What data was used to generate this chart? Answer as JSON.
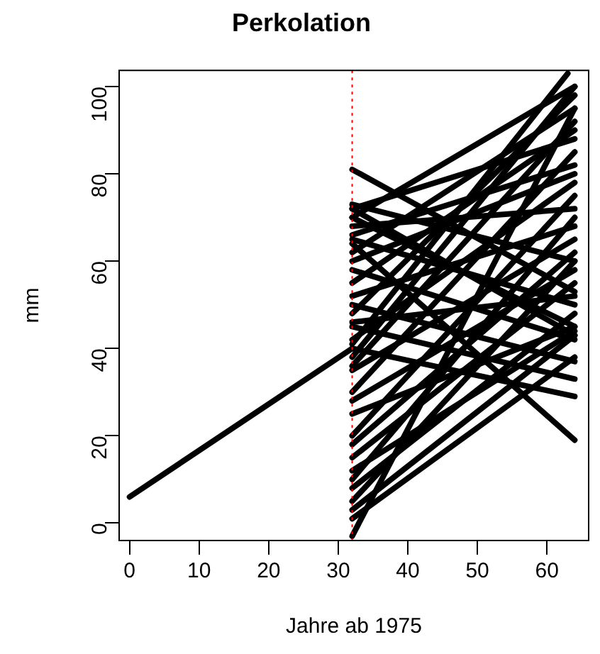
{
  "chart_data": {
    "type": "line",
    "title": "Perkolation",
    "xlabel": "Jahre ab 1975",
    "ylabel": "mm",
    "xlim": [
      -1.5,
      66
    ],
    "ylim": [
      -4,
      103.7
    ],
    "xticks": [
      0,
      10,
      20,
      30,
      40,
      50,
      60
    ],
    "yticks": [
      0,
      20,
      40,
      60,
      80,
      100
    ],
    "grid": false,
    "legend": false,
    "marker": "none",
    "line_style": "solid",
    "ref_lines": [
      {
        "axis": "x",
        "value": 32,
        "color": "#ff0000",
        "line_style": "dotted"
      }
    ],
    "series": [
      {
        "color": "#000000",
        "x": [
          0,
          32
        ],
        "values": [
          6,
          40
        ]
      },
      {
        "color": "#000000",
        "x": [
          32,
          64
        ],
        "values": [
          81,
          53
        ]
      },
      {
        "color": "#000000",
        "x": [
          32,
          63
        ],
        "values": [
          41,
          103
        ]
      },
      {
        "color": "#000000",
        "x": [
          32,
          64
        ],
        "values": [
          38,
          100
        ]
      },
      {
        "color": "#000000",
        "x": [
          32,
          64
        ],
        "values": [
          -3,
          95
        ]
      },
      {
        "color": "#000000",
        "x": [
          32,
          64
        ],
        "values": [
          1,
          38
        ]
      },
      {
        "color": "#000000",
        "x": [
          32,
          64
        ],
        "values": [
          5,
          60
        ]
      },
      {
        "color": "#000000",
        "x": [
          32,
          64
        ],
        "values": [
          10,
          70
        ]
      },
      {
        "color": "#000000",
        "x": [
          32,
          64
        ],
        "values": [
          64,
          19
        ]
      },
      {
        "color": "#000000",
        "x": [
          32,
          64
        ],
        "values": [
          40,
          29
        ]
      },
      {
        "color": "#000000",
        "x": [
          32,
          64
        ],
        "values": [
          45,
          33
        ]
      },
      {
        "color": "#000000",
        "x": [
          32,
          64
        ],
        "values": [
          50,
          37
        ]
      },
      {
        "color": "#000000",
        "x": [
          32,
          64
        ],
        "values": [
          72,
          43
        ]
      },
      {
        "color": "#000000",
        "x": [
          32,
          64
        ],
        "values": [
          73,
          60
        ]
      },
      {
        "color": "#000000",
        "x": [
          32,
          64
        ],
        "values": [
          70,
          100
        ]
      },
      {
        "color": "#000000",
        "x": [
          32,
          64
        ],
        "values": [
          60,
          80
        ]
      },
      {
        "color": "#000000",
        "x": [
          32,
          64
        ],
        "values": [
          55,
          90
        ]
      },
      {
        "color": "#000000",
        "x": [
          32,
          64
        ],
        "values": [
          20,
          75
        ]
      },
      {
        "color": "#000000",
        "x": [
          32,
          64
        ],
        "values": [
          30,
          85
        ]
      },
      {
        "color": "#000000",
        "x": [
          32,
          64
        ],
        "values": [
          65,
          50
        ]
      },
      {
        "color": "#000000",
        "x": [
          32,
          64
        ],
        "values": [
          15,
          55
        ]
      },
      {
        "color": "#000000",
        "x": [
          32,
          64
        ],
        "values": [
          25,
          45
        ]
      },
      {
        "color": "#000000",
        "x": [
          32,
          64
        ],
        "values": [
          35,
          65
        ]
      },
      {
        "color": "#000000",
        "x": [
          32,
          64
        ],
        "values": [
          68,
          72
        ]
      },
      {
        "color": "#000000",
        "x": [
          32,
          64
        ],
        "values": [
          8,
          48
        ]
      },
      {
        "color": "#000000",
        "x": [
          32,
          64
        ],
        "values": [
          12,
          44
        ]
      },
      {
        "color": "#000000",
        "x": [
          32,
          64
        ],
        "values": [
          62,
          95
        ]
      },
      {
        "color": "#000000",
        "x": [
          32,
          64
        ],
        "values": [
          48,
          98
        ]
      },
      {
        "color": "#000000",
        "x": [
          32,
          64
        ],
        "values": [
          72,
          88
        ]
      },
      {
        "color": "#000000",
        "x": [
          32,
          64
        ],
        "values": [
          58,
          42
        ]
      },
      {
        "color": "#000000",
        "x": [
          32,
          64
        ],
        "values": [
          70,
          45
        ]
      },
      {
        "color": "#000000",
        "x": [
          32,
          64
        ],
        "values": [
          3,
          43
        ]
      },
      {
        "color": "#000000",
        "x": [
          32,
          64
        ],
        "values": [
          18,
          62
        ]
      },
      {
        "color": "#000000",
        "x": [
          32,
          64
        ],
        "values": [
          28,
          58
        ]
      },
      {
        "color": "#000000",
        "x": [
          32,
          64
        ],
        "values": [
          42,
          78
        ]
      },
      {
        "color": "#000000",
        "x": [
          32,
          64
        ],
        "values": [
          52,
          68
        ]
      },
      {
        "color": "#000000",
        "x": [
          32,
          64
        ],
        "values": [
          66,
          82
        ]
      },
      {
        "color": "#000000",
        "x": [
          32,
          64
        ],
        "values": [
          46,
          52
        ]
      },
      {
        "color": "#000000",
        "x": [
          32,
          64
        ],
        "values": [
          36,
          92
        ]
      }
    ]
  }
}
